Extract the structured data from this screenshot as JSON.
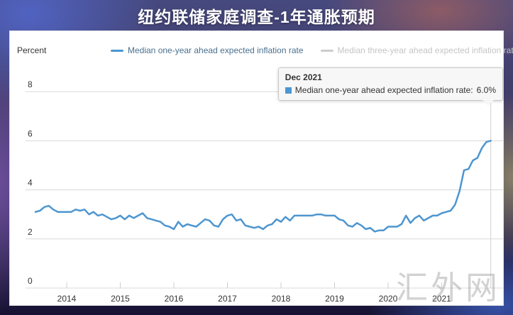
{
  "header": {
    "title": "纽约联储家庭调查-1年通胀预期"
  },
  "watermark": {
    "text": "汇外网"
  },
  "colors": {
    "line_blue": "#4d96d0",
    "disabled_gray": "#cccccc",
    "grid_gray": "#d8d8d8",
    "crosshair_gray": "#cfcfcf",
    "axis_text": "#333333",
    "legend_active_text": "#4a708e",
    "tooltip_bg": "#f7f7f7"
  },
  "chart_data": {
    "type": "line",
    "title": "",
    "xlabel": "",
    "ylabel": "Percent",
    "ylim": [
      0,
      8
    ],
    "yticks": [
      0,
      2,
      4,
      6,
      8
    ],
    "xticks": [
      2014,
      2015,
      2016,
      2017,
      2018,
      2019,
      2020,
      2021
    ],
    "grid": "horizontal-only",
    "legend_position": "top",
    "start": {
      "year": 2013,
      "month": 6,
      "interval": "monthly"
    },
    "series": [
      {
        "name": "Median one-year ahead expected inflation rate",
        "color": "#4d96d0",
        "visible": true,
        "values": [
          3.1,
          3.15,
          3.3,
          3.35,
          3.2,
          3.1,
          3.1,
          3.1,
          3.1,
          3.2,
          3.15,
          3.2,
          3.0,
          3.1,
          2.95,
          3.0,
          2.9,
          2.8,
          2.85,
          2.95,
          2.8,
          2.95,
          2.85,
          2.95,
          3.05,
          2.85,
          2.8,
          2.75,
          2.7,
          2.55,
          2.5,
          2.4,
          2.7,
          2.5,
          2.6,
          2.55,
          2.5,
          2.65,
          2.8,
          2.75,
          2.55,
          2.5,
          2.8,
          2.95,
          3.0,
          2.75,
          2.8,
          2.55,
          2.5,
          2.45,
          2.5,
          2.4,
          2.55,
          2.6,
          2.8,
          2.7,
          2.9,
          2.75,
          2.95,
          2.95,
          2.95,
          2.95,
          2.95,
          3.0,
          3.0,
          2.95,
          2.95,
          2.95,
          2.8,
          2.75,
          2.55,
          2.5,
          2.65,
          2.55,
          2.4,
          2.45,
          2.3,
          2.35,
          2.35,
          2.5,
          2.5,
          2.5,
          2.6,
          2.95,
          2.65,
          2.85,
          2.95,
          2.75,
          2.85,
          2.95,
          2.95,
          3.05,
          3.1,
          3.15,
          3.4,
          3.95,
          4.8,
          4.85,
          5.2,
          5.3,
          5.7,
          5.95,
          6.0
        ]
      },
      {
        "name": "Median three-year ahead expected inflation rate",
        "color": "#cccccc",
        "visible": false,
        "values": []
      }
    ],
    "tooltip": {
      "title": "Dec 2021",
      "series_label": "Median one-year ahead expected inflation rate:",
      "value": "6.0%"
    }
  }
}
